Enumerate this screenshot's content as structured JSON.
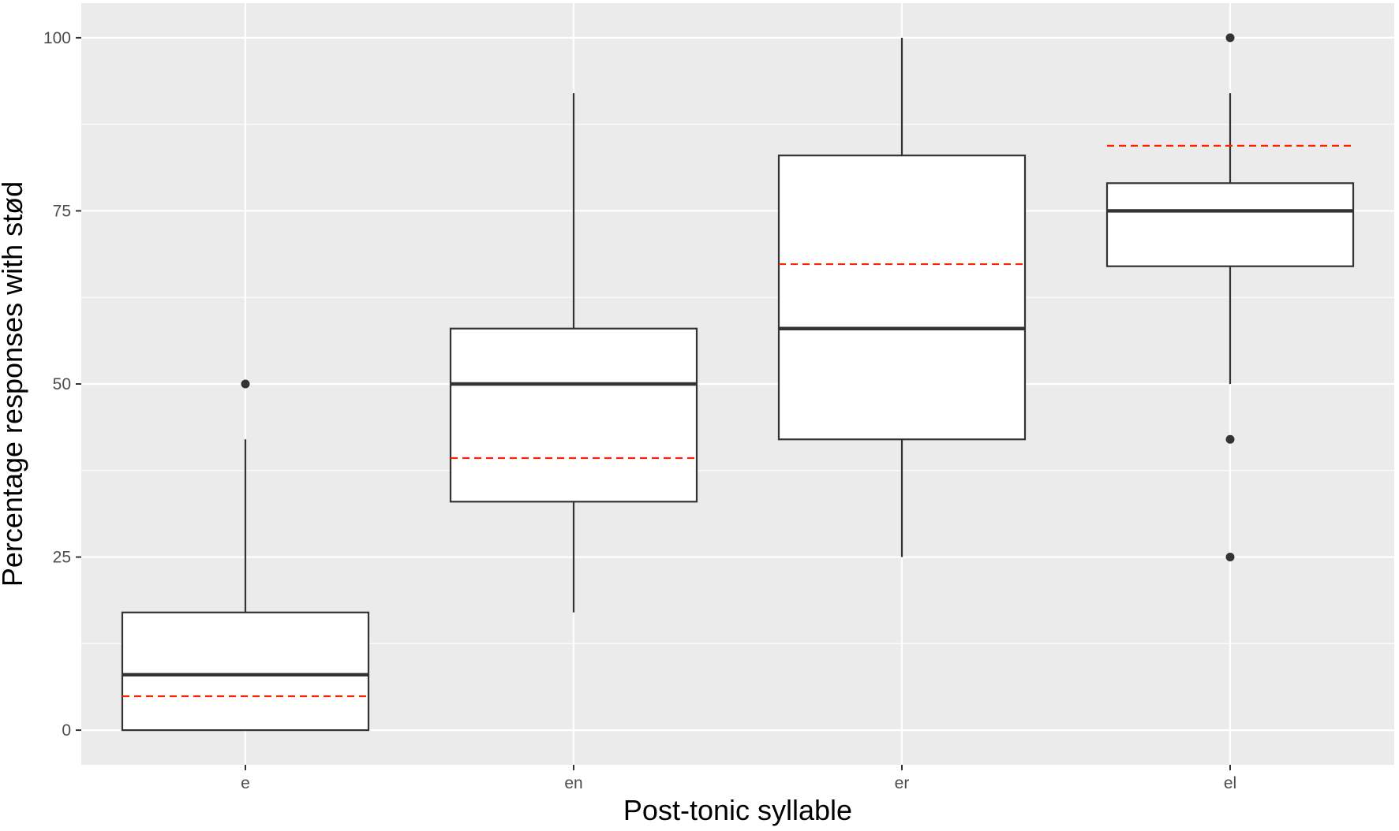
{
  "chart_data": {
    "type": "box",
    "xlabel": "Post-tonic syllable",
    "ylabel": "Percentage responses with stød",
    "ylim": [
      -5,
      105
    ],
    "y_ticks": [
      0,
      25,
      50,
      75,
      100
    ],
    "grid": true,
    "panel_background": "#ebebeb",
    "grid_color": "#ffffff",
    "box_fill": "#ffffff",
    "box_stroke": "#333333",
    "mean_line_color": "#ff2200",
    "categories": [
      "e",
      "en",
      "er",
      "el"
    ],
    "boxes": [
      {
        "category": "e",
        "whisker_low": 0,
        "q1": 0,
        "median": 8,
        "q3": 17,
        "whisker_high": 42,
        "mean": 4.9,
        "outliers": [
          50
        ]
      },
      {
        "category": "en",
        "whisker_low": 17,
        "q1": 33,
        "median": 50,
        "q3": 58,
        "whisker_high": 92,
        "mean": 39.3,
        "outliers": []
      },
      {
        "category": "er",
        "whisker_low": 25,
        "q1": 42,
        "median": 58,
        "q3": 83,
        "whisker_high": 100,
        "mean": 67.3,
        "outliers": []
      },
      {
        "category": "el",
        "whisker_low": 50,
        "q1": 67,
        "median": 75,
        "q3": 79,
        "whisker_high": 92,
        "mean": 84.4,
        "outliers": [
          100,
          42,
          25
        ]
      }
    ]
  }
}
